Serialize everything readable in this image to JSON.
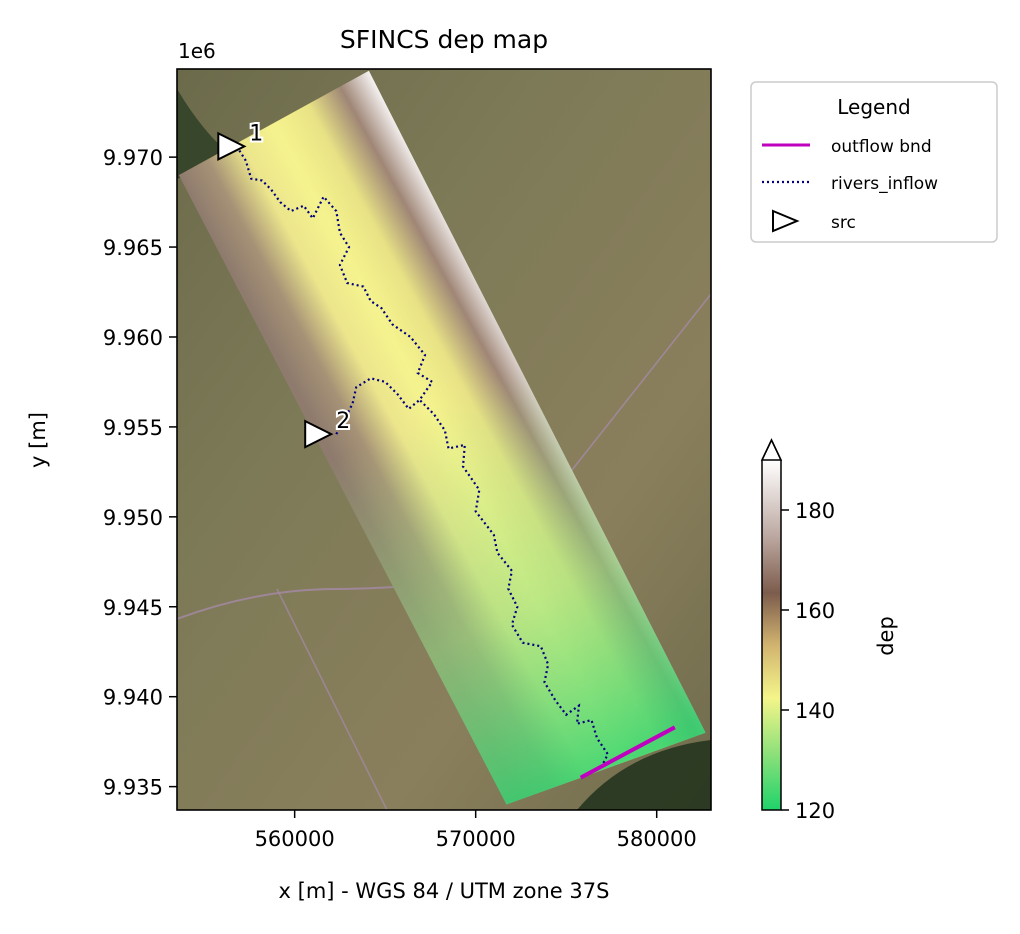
{
  "chart_data": {
    "type": "map",
    "title": "SFINCS dep map",
    "xlabel": "x [m] - WGS 84 / UTM zone 37S",
    "ylabel": "y [m]",
    "y_offset_label": "1e6",
    "xlim": [
      553500,
      583000
    ],
    "ylim": [
      9.9337,
      9.9749
    ],
    "x_ticks": [
      {
        "value": 560000,
        "label": "560000"
      },
      {
        "value": 570000,
        "label": "570000"
      },
      {
        "value": 580000,
        "label": "580000"
      }
    ],
    "y_ticks": [
      {
        "value": 9.935,
        "label": "9.935"
      },
      {
        "value": 9.94,
        "label": "9.940"
      },
      {
        "value": 9.945,
        "label": "9.945"
      },
      {
        "value": 9.95,
        "label": "9.950"
      },
      {
        "value": 9.955,
        "label": "9.955"
      },
      {
        "value": 9.96,
        "label": "9.960"
      },
      {
        "value": 9.965,
        "label": "9.965"
      },
      {
        "value": 9.97,
        "label": "9.970"
      }
    ],
    "model_domain_corners": [
      [
        553600,
        9.969
      ],
      [
        564100,
        9.9748
      ],
      [
        582700,
        9.938
      ],
      [
        571700,
        9.934
      ]
    ],
    "outflow_bnd": {
      "name": "outflow bnd",
      "color": "#bf00bf",
      "points": [
        [
          575800,
          9.9355
        ],
        [
          581000,
          9.9383
        ]
      ]
    },
    "rivers_inflow": {
      "name": "rivers_inflow",
      "color": "#00007f",
      "points": [
        [
          556800,
          9.9706
        ],
        [
          557300,
          9.9698
        ],
        [
          557600,
          9.9688
        ],
        [
          558200,
          9.9687
        ],
        [
          558700,
          9.9682
        ],
        [
          559200,
          9.9675
        ],
        [
          559800,
          9.967
        ],
        [
          560500,
          9.9673
        ],
        [
          561000,
          9.9666
        ],
        [
          561600,
          9.9678
        ],
        [
          562300,
          9.967
        ],
        [
          562500,
          9.9658
        ],
        [
          563000,
          9.965
        ],
        [
          562500,
          9.964
        ],
        [
          562900,
          9.963
        ],
        [
          563800,
          9.9628
        ],
        [
          564200,
          9.962
        ],
        [
          564800,
          9.9616
        ],
        [
          565400,
          9.9607
        ],
        [
          566400,
          9.96
        ],
        [
          567200,
          9.959
        ],
        [
          566800,
          9.958
        ],
        [
          567600,
          9.9575
        ],
        [
          566900,
          9.9565
        ],
        [
          567700,
          9.9557
        ],
        [
          568300,
          9.9548
        ],
        [
          568500,
          9.9538
        ],
        [
          569400,
          9.954
        ],
        [
          569300,
          9.9528
        ],
        [
          570200,
          9.9515
        ],
        [
          570000,
          9.9503
        ],
        [
          571000,
          9.949
        ],
        [
          571200,
          9.948
        ],
        [
          572000,
          9.947
        ],
        [
          571800,
          9.946
        ],
        [
          572300,
          9.945
        ],
        [
          572000,
          9.944
        ],
        [
          572600,
          9.943
        ],
        [
          573600,
          9.9428
        ],
        [
          574000,
          9.9418
        ],
        [
          573800,
          9.9408
        ],
        [
          574400,
          9.9398
        ],
        [
          575000,
          9.939
        ],
        [
          575700,
          9.9395
        ],
        [
          575600,
          9.9385
        ],
        [
          576400,
          9.9387
        ],
        [
          576700,
          9.9377
        ],
        [
          577300,
          9.9368
        ],
        [
          576900,
          9.936
        ]
      ]
    },
    "branch_inflow": [
      [
        562300,
        9.9546
      ],
      [
        562800,
        9.9555
      ],
      [
        563200,
        9.9563
      ],
      [
        563400,
        9.9572
      ],
      [
        564200,
        9.9577
      ],
      [
        565000,
        9.9575
      ],
      [
        565700,
        9.9568
      ],
      [
        566300,
        9.956
      ],
      [
        566900,
        9.9565
      ]
    ],
    "src_points": [
      {
        "label": "1",
        "x": 556500,
        "y": 9.9706
      },
      {
        "label": "2",
        "x": 561300,
        "y": 9.9546
      }
    ],
    "legend": {
      "title": "Legend",
      "placement": "outside-top-right",
      "entries": [
        {
          "label": "outflow bnd",
          "style": "solid",
          "color": "#bf00bf"
        },
        {
          "label": "rivers_inflow",
          "style": "dotted",
          "color": "#00007f"
        },
        {
          "label": "src",
          "style": "marker-triangle-right",
          "color": "#000000"
        }
      ]
    },
    "colorbar": {
      "label": "dep",
      "range": [
        120,
        190
      ],
      "extend": "max",
      "ticks": [
        {
          "value": 120,
          "label": "120"
        },
        {
          "value": 140,
          "label": "140"
        },
        {
          "value": 160,
          "label": "160"
        },
        {
          "value": 180,
          "label": "180"
        }
      ],
      "stops": [
        {
          "offset": 0.0,
          "color": "#1fd36a"
        },
        {
          "offset": 0.16,
          "color": "#8de07a"
        },
        {
          "offset": 0.32,
          "color": "#f4f58a"
        },
        {
          "offset": 0.47,
          "color": "#d2b470"
        },
        {
          "offset": 0.62,
          "color": "#7c5c4c"
        },
        {
          "offset": 0.78,
          "color": "#bca7a0"
        },
        {
          "offset": 1.0,
          "color": "#ffffff"
        }
      ]
    }
  }
}
